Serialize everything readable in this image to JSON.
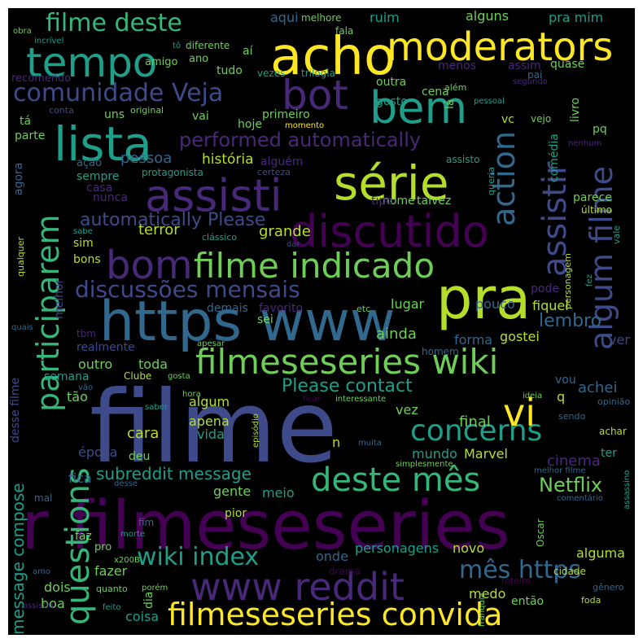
{
  "palette": {
    "purple": "#440154",
    "indigo": "#482878",
    "blue": "#3e4a89",
    "slate": "#31688e",
    "teal": "#26828e",
    "sea": "#1f9e89",
    "green": "#35b779",
    "lime": "#6ece58",
    "olive": "#b5de2b",
    "yellow": "#fde725"
  },
  "words": [
    {
      "t": "filme",
      "c": "blue"
    },
    {
      "t": "r filmeseseries",
      "c": "purple"
    },
    {
      "t": "https www",
      "c": "slate"
    },
    {
      "t": "pra",
      "c": "olive"
    },
    {
      "t": "acho",
      "c": "yellow"
    },
    {
      "t": "moderators",
      "c": "yellow"
    },
    {
      "t": "tempo",
      "c": "sea"
    },
    {
      "t": "bem",
      "c": "sea"
    },
    {
      "t": "lista",
      "c": "sea"
    },
    {
      "t": "bot",
      "c": "indigo"
    },
    {
      "t": "série",
      "c": "olive"
    },
    {
      "t": "assisti",
      "c": "indigo"
    },
    {
      "t": "discutido",
      "c": "purple"
    },
    {
      "t": "bom",
      "c": "indigo"
    },
    {
      "t": "filme indicado",
      "c": "lime"
    },
    {
      "t": "filmeseseries wiki",
      "c": "lime"
    },
    {
      "t": "www reddit",
      "c": "indigo"
    },
    {
      "t": "filmeseseries convida",
      "c": "yellow"
    },
    {
      "t": "deste mês",
      "c": "green"
    },
    {
      "t": "concerns",
      "c": "sea"
    },
    {
      "t": "vi",
      "c": "yellow"
    },
    {
      "t": "participarem",
      "c": "green"
    },
    {
      "t": "questions",
      "c": "green"
    },
    {
      "t": "action",
      "c": "slate"
    },
    {
      "t": "assistir",
      "c": "blue"
    },
    {
      "t": "algum filme",
      "c": "blue"
    },
    {
      "t": "filme deste",
      "c": "green"
    },
    {
      "t": "comunidade Veja",
      "c": "blue"
    },
    {
      "t": "discussões mensais",
      "c": "blue"
    },
    {
      "t": "performed automatically",
      "c": "indigo"
    },
    {
      "t": "automatically Please",
      "c": "blue"
    },
    {
      "t": "wiki index",
      "c": "sea"
    },
    {
      "t": "mês https",
      "c": "slate"
    },
    {
      "t": "Please contact",
      "c": "sea"
    },
    {
      "t": "message compose",
      "c": "sea"
    },
    {
      "t": "subreddit message",
      "c": "sea"
    },
    {
      "t": "Netflix",
      "c": "lime"
    },
    {
      "t": "lembro",
      "c": "slate"
    },
    {
      "t": "história",
      "c": "olive"
    },
    {
      "t": "pessoa",
      "c": "slate"
    },
    {
      "t": "terror",
      "c": "olive"
    },
    {
      "t": "grande",
      "c": "olive"
    },
    {
      "t": "ainda",
      "c": "lime"
    },
    {
      "t": "achei",
      "c": "slate"
    },
    {
      "t": "final",
      "c": "lime"
    },
    {
      "t": "cinema",
      "c": "indigo"
    },
    {
      "t": "mundo",
      "c": "sea"
    },
    {
      "t": "Marvel",
      "c": "olive"
    },
    {
      "t": "cara",
      "c": "olive"
    },
    {
      "t": "vida",
      "c": "sea"
    },
    {
      "t": "apena",
      "c": "olive"
    },
    {
      "t": "época",
      "c": "blue"
    },
    {
      "t": "fica",
      "c": "slate"
    },
    {
      "t": "gente",
      "c": "lime"
    },
    {
      "t": "meio",
      "c": "sea"
    },
    {
      "t": "pouco",
      "c": "slate"
    },
    {
      "t": "lugar",
      "c": "lime"
    },
    {
      "t": "fiquei",
      "c": "olive"
    },
    {
      "t": "gostei",
      "c": "olive"
    },
    {
      "t": "forma",
      "c": "slate"
    },
    {
      "t": "outro",
      "c": "lime"
    },
    {
      "t": "toda",
      "c": "lime"
    },
    {
      "t": "semana",
      "c": "sea"
    },
    {
      "t": "tão",
      "c": "lime"
    },
    {
      "t": "algum",
      "c": "olive"
    },
    {
      "t": "deu",
      "c": "lime"
    },
    {
      "t": "onde",
      "c": "slate"
    },
    {
      "t": "personagens",
      "c": "sea"
    },
    {
      "t": "novo",
      "c": "olive"
    },
    {
      "t": "alguma",
      "c": "olive"
    },
    {
      "t": "medo",
      "c": "olive"
    },
    {
      "t": "então",
      "c": "lime"
    },
    {
      "t": "fazer",
      "c": "lime"
    },
    {
      "t": "dois",
      "c": "lime"
    },
    {
      "t": "boa",
      "c": "lime"
    },
    {
      "t": "coisa",
      "c": "sea"
    },
    {
      "t": "dia",
      "c": "lime"
    },
    {
      "t": "cidade",
      "c": "olive"
    },
    {
      "t": "drama",
      "c": "purple"
    },
    {
      "t": "faz",
      "c": "lime"
    },
    {
      "t": "pro",
      "c": "lime"
    },
    {
      "t": "pior",
      "c": "olive"
    },
    {
      "t": "fim",
      "c": "slate"
    },
    {
      "t": "ver",
      "c": "blue"
    },
    {
      "t": "vez",
      "c": "lime"
    },
    {
      "t": "vou",
      "c": "slate"
    },
    {
      "t": "q",
      "c": "olive"
    },
    {
      "t": "n",
      "c": "olive"
    },
    {
      "t": "ter",
      "c": "sea"
    },
    {
      "t": "aqui",
      "c": "slate"
    },
    {
      "t": "ruim",
      "c": "sea"
    },
    {
      "t": "alguns",
      "c": "lime"
    },
    {
      "t": "pra mim",
      "c": "sea"
    },
    {
      "t": "melhore",
      "c": "lime"
    },
    {
      "t": "fala",
      "c": "lime"
    },
    {
      "t": "aí",
      "c": "lime"
    },
    {
      "t": "diferente",
      "c": "lime"
    },
    {
      "t": "amigo",
      "c": "lime"
    },
    {
      "t": "ano",
      "c": "lime"
    },
    {
      "t": "tudo",
      "c": "lime"
    },
    {
      "t": "vezes",
      "c": "sea"
    },
    {
      "t": "trilogia",
      "c": "sea"
    },
    {
      "t": "menos",
      "c": "indigo"
    },
    {
      "t": "outra",
      "c": "lime"
    },
    {
      "t": "assim",
      "c": "indigo"
    },
    {
      "t": "quase",
      "c": "lime"
    },
    {
      "t": "recomendo",
      "c": "indigo"
    },
    {
      "t": "gosto",
      "c": "sea"
    },
    {
      "t": "cena",
      "c": "lime"
    },
    {
      "t": "lá",
      "c": "lime"
    },
    {
      "t": "além",
      "c": "lime"
    },
    {
      "t": "pai",
      "c": "slate"
    },
    {
      "t": "livro",
      "c": "lime"
    },
    {
      "t": "vc",
      "c": "olive"
    },
    {
      "t": "vejo",
      "c": "lime"
    },
    {
      "t": "momento",
      "c": "yellow"
    },
    {
      "t": "primeiro",
      "c": "lime"
    },
    {
      "t": "hoje",
      "c": "lime"
    },
    {
      "t": "vai",
      "c": "lime"
    },
    {
      "t": "uns",
      "c": "lime"
    },
    {
      "t": "tá",
      "c": "lime"
    },
    {
      "t": "parte",
      "c": "lime"
    },
    {
      "t": "conta",
      "c": "blue"
    },
    {
      "t": "original",
      "c": "lime"
    },
    {
      "t": "ação",
      "c": "slate"
    },
    {
      "t": "sempre",
      "c": "sea"
    },
    {
      "t": "alguém",
      "c": "indigo"
    },
    {
      "t": "nome",
      "c": "lime"
    },
    {
      "t": "assisto",
      "c": "sea"
    },
    {
      "t": "comédia",
      "c": "sea"
    },
    {
      "t": "pq",
      "c": "lime"
    },
    {
      "t": "nenhum",
      "c": "indigo"
    },
    {
      "t": "protagonista",
      "c": "sea"
    },
    {
      "t": "certeza",
      "c": "blue"
    },
    {
      "t": "casa",
      "c": "indigo"
    },
    {
      "t": "nunca",
      "c": "indigo"
    },
    {
      "t": "tipo",
      "c": "indigo"
    },
    {
      "t": "talvez",
      "c": "lime"
    },
    {
      "t": "queria",
      "c": "sea"
    },
    {
      "t": "parece",
      "c": "lime"
    },
    {
      "t": "último",
      "c": "olive"
    },
    {
      "t": "agora",
      "c": "slate"
    },
    {
      "t": "sim",
      "c": "olive"
    },
    {
      "t": "bons",
      "c": "olive"
    },
    {
      "t": "sabe",
      "c": "sea"
    },
    {
      "t": "clássico",
      "c": "sea"
    },
    {
      "t": "dar",
      "c": "blue"
    },
    {
      "t": "vale",
      "c": "sea"
    },
    {
      "t": "personagem",
      "c": "olive"
    },
    {
      "t": "melhor",
      "c": "blue"
    },
    {
      "t": "demais",
      "c": "slate"
    },
    {
      "t": "favorito",
      "c": "indigo"
    },
    {
      "t": "sei",
      "c": "lime"
    },
    {
      "t": "etc",
      "c": "lime"
    },
    {
      "t": "pode",
      "c": "indigo"
    },
    {
      "t": "realmente",
      "c": "blue"
    },
    {
      "t": "apesar",
      "c": "lime"
    },
    {
      "t": "homem",
      "c": "slate"
    },
    {
      "t": "tbm",
      "c": "indigo"
    },
    {
      "t": "quais",
      "c": "slate"
    },
    {
      "t": "desse filme",
      "c": "blue"
    },
    {
      "t": "Clube",
      "c": "olive"
    },
    {
      "t": "gosta",
      "c": "lime"
    },
    {
      "t": "vão",
      "c": "slate"
    },
    {
      "t": "saber",
      "c": "sea"
    },
    {
      "t": "hora",
      "c": "lime"
    },
    {
      "t": "ficar",
      "c": "purple"
    },
    {
      "t": "interessante",
      "c": "lime"
    },
    {
      "t": "ideia",
      "c": "lime"
    },
    {
      "t": "opinião",
      "c": "slate"
    },
    {
      "t": "sendo",
      "c": "slate"
    },
    {
      "t": "achar",
      "c": "olive"
    },
    {
      "t": "episódio",
      "c": "olive"
    },
    {
      "t": "muita",
      "c": "slate"
    },
    {
      "t": "simplesmente",
      "c": "lime"
    },
    {
      "t": "melhor filme",
      "c": "slate"
    },
    {
      "t": "assassino",
      "c": "sea"
    },
    {
      "t": "desse",
      "c": "slate"
    },
    {
      "t": "comentário",
      "c": "slate"
    },
    {
      "t": "Oscar",
      "c": "lime"
    },
    {
      "t": "mal",
      "c": "slate"
    },
    {
      "t": "morte",
      "c": "sea"
    },
    {
      "t": "x200B",
      "c": "lime"
    },
    {
      "t": "amo",
      "c": "slate"
    },
    {
      "t": "quanto",
      "c": "lime"
    },
    {
      "t": "porém",
      "c": "lime"
    },
    {
      "t": "roteiro",
      "c": "purple"
    },
    {
      "t": "gênero",
      "c": "slate"
    },
    {
      "t": "feito",
      "c": "sea"
    },
    {
      "t": "foda",
      "c": "olive"
    },
    {
      "t": "franquia",
      "c": "lime"
    },
    {
      "t": "assistiu",
      "c": "indigo"
    },
    {
      "t": "fez",
      "c": "sea"
    },
    {
      "t": "qualquer",
      "c": "olive"
    },
    {
      "t": "obra",
      "c": "lime"
    },
    {
      "t": "incrível",
      "c": "sea"
    },
    {
      "t": "tô",
      "c": "sea"
    },
    {
      "t": "segundo",
      "c": "indigo"
    },
    {
      "t": "pessoal",
      "c": "sea"
    }
  ]
}
